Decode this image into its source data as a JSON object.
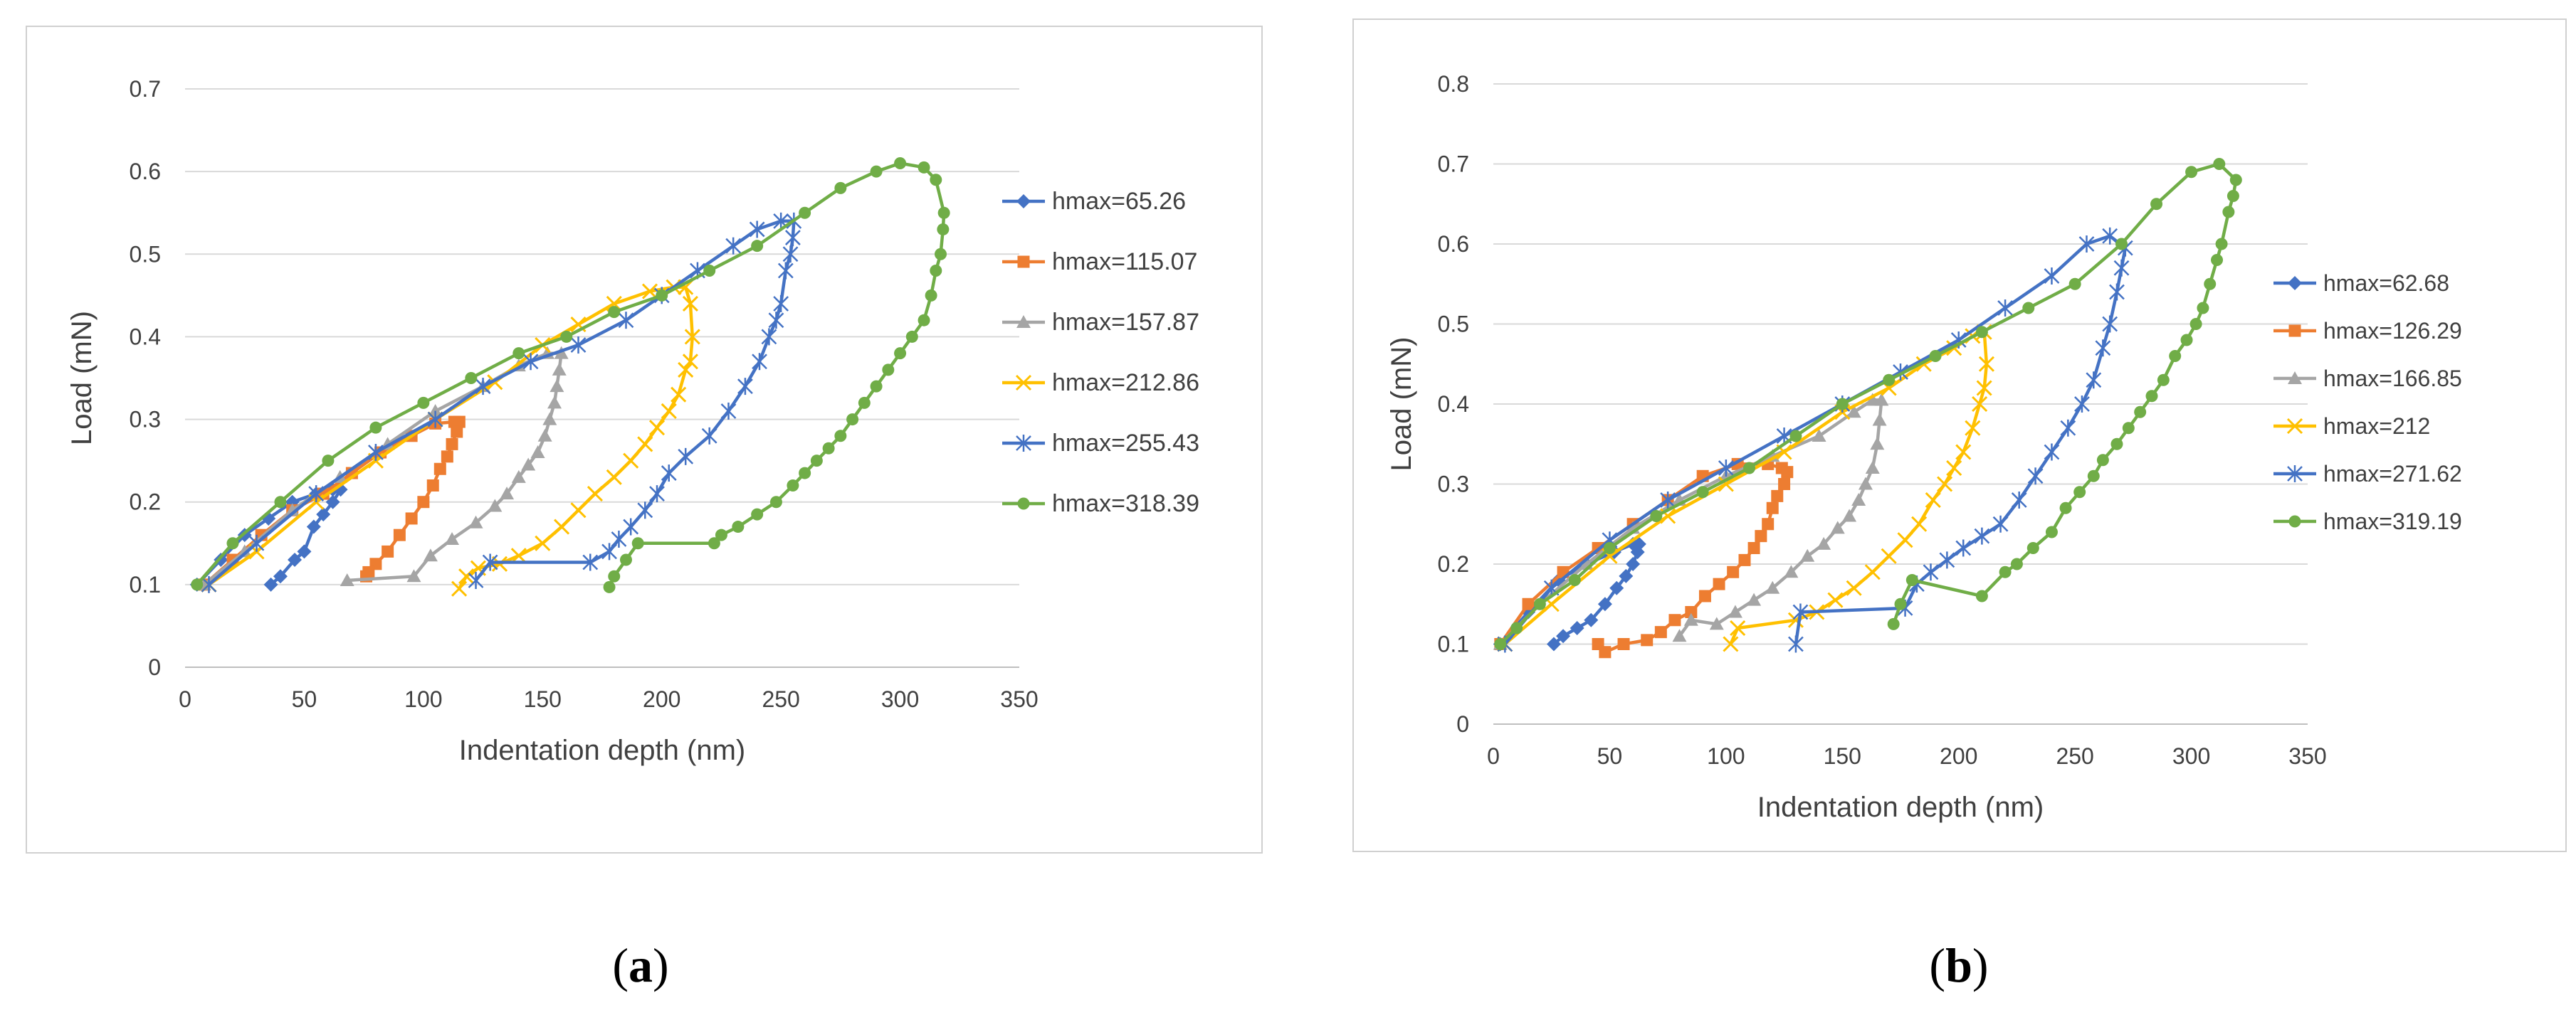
{
  "panels": [
    {
      "id": "a",
      "caption_letter": "a",
      "chart_data": {
        "type": "line",
        "title": "",
        "xlabel": "Indentation depth (nm)",
        "ylabel": "Load (mN)",
        "xlim": [
          0,
          350
        ],
        "ylim": [
          0,
          0.7
        ],
        "xticks": [
          0,
          50,
          100,
          150,
          200,
          250,
          300,
          350
        ],
        "yticks": [
          0,
          0.1,
          0.2,
          0.3,
          0.4,
          0.5,
          0.6,
          0.7
        ],
        "ytick_labels": [
          "0",
          "0.1",
          "0.2",
          "0.3",
          "0.4",
          "0.5",
          "0.6",
          "0.7"
        ],
        "grid": "horizontal",
        "legend_position": "right",
        "series": [
          {
            "name": "hmax=65.26",
            "color": "#4472c4",
            "marker": "diamond",
            "x": [
              5,
              15,
              25,
              35,
              45,
              55,
              62,
              65.26,
              62,
              58,
              54,
              50,
              46,
              40,
              36
            ],
            "y": [
              0.1,
              0.13,
              0.16,
              0.18,
              0.2,
              0.21,
              0.215,
              0.215,
              0.2,
              0.185,
              0.17,
              0.14,
              0.13,
              0.11,
              0.1
            ]
          },
          {
            "name": "hmax=115.07",
            "color": "#ed7d31",
            "marker": "square",
            "x": [
              8,
              20,
              32,
              45,
              58,
              70,
              82,
              95,
              105,
              113,
              115.07,
              114,
              112,
              110,
              107,
              104,
              100,
              95,
              90,
              85,
              80,
              77,
              76
            ],
            "y": [
              0.1,
              0.13,
              0.16,
              0.19,
              0.21,
              0.235,
              0.26,
              0.28,
              0.295,
              0.297,
              0.297,
              0.285,
              0.27,
              0.255,
              0.24,
              0.22,
              0.2,
              0.18,
              0.16,
              0.14,
              0.125,
              0.115,
              0.11
            ]
          },
          {
            "name": "hmax=157.87",
            "color": "#a5a5a5",
            "marker": "triangle",
            "x": [
              8,
              25,
              45,
              65,
              85,
              105,
              125,
              140,
              152,
              157.87,
              157,
              156,
              155,
              153,
              151,
              148,
              144,
              140,
              135,
              130,
              122,
              112,
              103,
              96,
              68
            ],
            "y": [
              0.1,
              0.14,
              0.19,
              0.23,
              0.27,
              0.31,
              0.34,
              0.365,
              0.38,
              0.38,
              0.36,
              0.34,
              0.32,
              0.3,
              0.28,
              0.26,
              0.245,
              0.23,
              0.21,
              0.195,
              0.175,
              0.155,
              0.135,
              0.11,
              0.105
            ]
          },
          {
            "name": "hmax=212.86",
            "color": "#ffc000",
            "marker": "x",
            "x": [
              10,
              30,
              55,
              80,
              105,
              130,
              150,
              165,
              180,
              195,
              205,
              210,
              212,
              212.86,
              212,
              210,
              207,
              203,
              198,
              193,
              187,
              180,
              172,
              165,
              158,
              150,
              140,
              132,
              123,
              118,
              115
            ],
            "y": [
              0.1,
              0.14,
              0.2,
              0.25,
              0.3,
              0.345,
              0.39,
              0.415,
              0.44,
              0.455,
              0.46,
              0.46,
              0.44,
              0.4,
              0.37,
              0.36,
              0.33,
              0.31,
              0.29,
              0.27,
              0.25,
              0.23,
              0.21,
              0.19,
              0.17,
              0.15,
              0.135,
              0.125,
              0.12,
              0.11,
              0.095
            ]
          },
          {
            "name": "hmax=255.43",
            "color": "#4472c4",
            "marker": "star",
            "x": [
              10,
              30,
              55,
              80,
              105,
              125,
              145,
              165,
              185,
              200,
              215,
              230,
              240,
              250,
              255.43,
              255,
              254,
              252,
              250,
              248,
              245,
              241,
              235,
              228,
              220,
              210,
              203,
              198,
              193,
              187,
              182,
              178,
              170,
              128,
              122
            ],
            "y": [
              0.1,
              0.15,
              0.21,
              0.26,
              0.3,
              0.34,
              0.37,
              0.39,
              0.42,
              0.45,
              0.48,
              0.51,
              0.53,
              0.54,
              0.54,
              0.52,
              0.5,
              0.48,
              0.44,
              0.42,
              0.4,
              0.37,
              0.34,
              0.31,
              0.28,
              0.255,
              0.235,
              0.21,
              0.19,
              0.17,
              0.155,
              0.14,
              0.127,
              0.127,
              0.105
            ]
          },
          {
            "name": "hmax=318.39",
            "color": "#70ad47",
            "marker": "circle",
            "x": [
              5,
              20,
              40,
              60,
              80,
              100,
              120,
              140,
              160,
              180,
              200,
              220,
              240,
              260,
              275,
              290,
              300,
              310,
              315,
              318.39,
              318,
              317,
              315,
              313,
              310,
              305,
              300,
              295,
              290,
              285,
              280,
              275,
              270,
              265,
              260,
              255,
              248,
              240,
              232,
              225,
              222,
              190,
              185,
              180,
              178
            ],
            "y": [
              0.1,
              0.15,
              0.2,
              0.25,
              0.29,
              0.32,
              0.35,
              0.38,
              0.4,
              0.43,
              0.45,
              0.48,
              0.51,
              0.55,
              0.58,
              0.6,
              0.61,
              0.605,
              0.59,
              0.55,
              0.53,
              0.5,
              0.48,
              0.45,
              0.42,
              0.4,
              0.38,
              0.36,
              0.34,
              0.32,
              0.3,
              0.28,
              0.265,
              0.25,
              0.235,
              0.22,
              0.2,
              0.185,
              0.17,
              0.16,
              0.15,
              0.15,
              0.13,
              0.11,
              0.097
            ]
          }
        ]
      }
    },
    {
      "id": "b",
      "caption_letter": "b",
      "chart_data": {
        "type": "line",
        "title": "",
        "xlabel": "Indentation depth (nm)",
        "ylabel": "Load (mN)",
        "xlim": [
          0,
          350
        ],
        "ylim": [
          0,
          0.8
        ],
        "xticks": [
          0,
          50,
          100,
          150,
          200,
          250,
          300,
          350
        ],
        "yticks": [
          0,
          0.1,
          0.2,
          0.3,
          0.4,
          0.5,
          0.6,
          0.7,
          0.8
        ],
        "ytick_labels": [
          "0",
          "0.1",
          "0.2",
          "0.3",
          "0.4",
          "0.5",
          "0.6",
          "0.7",
          "0.8"
        ],
        "grid": "horizontal",
        "legend_position": "right",
        "series": [
          {
            "name": "hmax=62.68",
            "color": "#4472c4",
            "marker": "diamond",
            "x": [
              3,
              15,
              28,
              40,
              52,
              60,
              62.68,
              62,
              60,
              57,
              53,
              48,
              42,
              36,
              30,
              26
            ],
            "y": [
              0.1,
              0.14,
              0.18,
              0.2,
              0.215,
              0.225,
              0.225,
              0.215,
              0.2,
              0.185,
              0.17,
              0.15,
              0.13,
              0.12,
              0.11,
              0.1
            ]
          },
          {
            "name": "hmax=126.29",
            "color": "#ed7d31",
            "marker": "square",
            "x": [
              3,
              15,
              30,
              45,
              60,
              75,
              90,
              105,
              118,
              124,
              126.29,
              125,
              122,
              120,
              118,
              115,
              112,
              108,
              103,
              97,
              91,
              85,
              78,
              72,
              66,
              56,
              48,
              45
            ],
            "y": [
              0.1,
              0.15,
              0.19,
              0.22,
              0.25,
              0.28,
              0.31,
              0.325,
              0.325,
              0.32,
              0.315,
              0.3,
              0.285,
              0.27,
              0.25,
              0.235,
              0.22,
              0.205,
              0.19,
              0.175,
              0.16,
              0.14,
              0.13,
              0.115,
              0.105,
              0.1,
              0.09,
              0.1
            ]
          },
          {
            "name": "hmax=166.85",
            "color": "#a5a5a5",
            "marker": "triangle",
            "x": [
              3,
              20,
              40,
              60,
              80,
              100,
              120,
              140,
              155,
              163,
              166.85,
              166,
              165,
              163,
              160,
              157,
              153,
              148,
              142,
              135,
              128,
              120,
              112,
              104,
              96,
              85,
              80
            ],
            "y": [
              0.1,
              0.15,
              0.2,
              0.245,
              0.28,
              0.31,
              0.335,
              0.36,
              0.39,
              0.405,
              0.405,
              0.38,
              0.35,
              0.32,
              0.3,
              0.28,
              0.26,
              0.245,
              0.225,
              0.21,
              0.19,
              0.17,
              0.155,
              0.14,
              0.125,
              0.13,
              0.11
            ]
          },
          {
            "name": "hmax=212",
            "color": "#ffc000",
            "marker": "x",
            "x": [
              5,
              25,
              50,
              75,
              100,
              125,
              150,
              170,
              185,
              198,
              206,
              211,
              212,
              211,
              209,
              206,
              202,
              198,
              194,
              189,
              183,
              177,
              170,
              163,
              155,
              147,
              139,
              130,
              105,
              102
            ],
            "y": [
              0.1,
              0.15,
              0.21,
              0.26,
              0.3,
              0.34,
              0.39,
              0.42,
              0.45,
              0.47,
              0.485,
              0.49,
              0.45,
              0.42,
              0.4,
              0.37,
              0.34,
              0.32,
              0.3,
              0.28,
              0.25,
              0.23,
              0.21,
              0.19,
              0.17,
              0.155,
              0.14,
              0.13,
              0.12,
              0.1
            ]
          },
          {
            "name": "hmax=271.62",
            "color": "#4472c4",
            "marker": "star",
            "x": [
              5,
              25,
              50,
              75,
              100,
              125,
              150,
              175,
              200,
              220,
              240,
              255,
              265,
              271.62,
              270,
              268,
              265,
              262,
              258,
              253,
              247,
              240,
              233,
              226,
              218,
              210,
              202,
              195,
              188,
              182,
              177,
              132,
              130
            ],
            "y": [
              0.1,
              0.17,
              0.23,
              0.28,
              0.32,
              0.36,
              0.4,
              0.44,
              0.48,
              0.52,
              0.56,
              0.6,
              0.61,
              0.595,
              0.57,
              0.54,
              0.5,
              0.47,
              0.43,
              0.4,
              0.37,
              0.34,
              0.31,
              0.28,
              0.25,
              0.235,
              0.22,
              0.205,
              0.19,
              0.175,
              0.145,
              0.14,
              0.1
            ]
          },
          {
            "name": "hmax=319.19",
            "color": "#70ad47",
            "marker": "circle",
            "x": [
              3,
              10,
              20,
              35,
              50,
              70,
              90,
              110,
              130,
              150,
              170,
              190,
              210,
              230,
              250,
              270,
              285,
              300,
              312,
              319.19,
              318,
              316,
              313,
              311,
              308,
              305,
              302,
              298,
              293,
              288,
              283,
              278,
              273,
              268,
              262,
              258,
              252,
              246,
              240,
              232,
              225,
              220,
              210,
              180,
              175,
              172
            ],
            "y": [
              0.1,
              0.12,
              0.15,
              0.18,
              0.22,
              0.26,
              0.29,
              0.32,
              0.36,
              0.4,
              0.43,
              0.46,
              0.49,
              0.52,
              0.55,
              0.6,
              0.65,
              0.69,
              0.7,
              0.68,
              0.66,
              0.64,
              0.6,
              0.58,
              0.55,
              0.52,
              0.5,
              0.48,
              0.46,
              0.43,
              0.41,
              0.39,
              0.37,
              0.35,
              0.33,
              0.31,
              0.29,
              0.27,
              0.24,
              0.22,
              0.2,
              0.19,
              0.16,
              0.18,
              0.15,
              0.125
            ]
          }
        ]
      }
    }
  ]
}
